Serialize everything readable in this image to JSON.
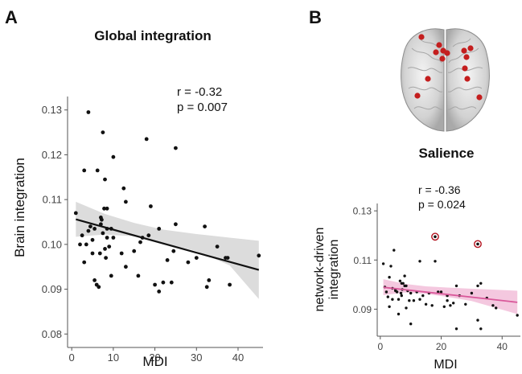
{
  "panels": {
    "a": {
      "letter": "A"
    },
    "b": {
      "letter": "B",
      "brain_title": "Salience"
    }
  },
  "colors": {
    "point": "#111111",
    "fit_a": "#111111",
    "band_a": "#d6d6d6",
    "fit_b": "#d9589a",
    "band_b": "#f3c2dc",
    "highlight": "#b3121e",
    "node": "#c41e1e",
    "axis": "#555555"
  },
  "chart_data": [
    {
      "type": "scatter",
      "title": "Global integration",
      "xlabel": "MDI",
      "ylabel": "Brain integration",
      "xlim": [
        -1,
        46
      ],
      "ylim": [
        0.077,
        0.133
      ],
      "xticks": [
        0,
        10,
        20,
        30,
        40
      ],
      "yticks": [
        0.08,
        0.09,
        0.1,
        0.11,
        0.12,
        0.13
      ],
      "ytick_labels": [
        "0.08",
        "0.09",
        "0.10",
        "0.11",
        "0.12",
        "0.13"
      ],
      "stats": {
        "r": "r  = -0.32",
        "p": "p = 0.007"
      },
      "fit": {
        "x": [
          1,
          45
        ],
        "y": [
          0.1056,
          0.0943
        ]
      },
      "ci_band": {
        "x": [
          1,
          8,
          15,
          22,
          30,
          38,
          45
        ],
        "upper": [
          0.1095,
          0.1068,
          0.1048,
          0.1033,
          0.1023,
          0.1015,
          0.1008
        ],
        "lower": [
          0.1017,
          0.1022,
          0.1018,
          0.1003,
          0.0985,
          0.0953,
          0.0878
        ]
      },
      "points": [
        [
          1,
          0.107
        ],
        [
          2,
          0.1
        ],
        [
          2.5,
          0.102
        ],
        [
          3,
          0.1165
        ],
        [
          3,
          0.096
        ],
        [
          3.5,
          0.1
        ],
        [
          4,
          0.1295
        ],
        [
          4,
          0.103
        ],
        [
          4.5,
          0.104
        ],
        [
          5,
          0.101
        ],
        [
          5,
          0.098
        ],
        [
          5.5,
          0.092
        ],
        [
          5.5,
          0.1035
        ],
        [
          6,
          0.091
        ],
        [
          6.2,
          0.1165
        ],
        [
          6.5,
          0.0905
        ],
        [
          6.8,
          0.098
        ],
        [
          7,
          0.1045
        ],
        [
          7,
          0.106
        ],
        [
          7.2,
          0.1055
        ],
        [
          7.5,
          0.1025
        ],
        [
          7.5,
          0.125
        ],
        [
          7.8,
          0.108
        ],
        [
          8,
          0.1145
        ],
        [
          8,
          0.099
        ],
        [
          8.2,
          0.097
        ],
        [
          8.5,
          0.108
        ],
        [
          8.5,
          0.1035
        ],
        [
          8.5,
          0.1015
        ],
        [
          9,
          0.0995
        ],
        [
          9.5,
          0.093
        ],
        [
          9.5,
          0.1035
        ],
        [
          10,
          0.1015
        ],
        [
          10,
          0.1195
        ],
        [
          12,
          0.098
        ],
        [
          12.5,
          0.1125
        ],
        [
          13,
          0.095
        ],
        [
          13,
          0.1095
        ],
        [
          15,
          0.0985
        ],
        [
          16,
          0.093
        ],
        [
          16.5,
          0.1005
        ],
        [
          17,
          0.1015
        ],
        [
          18,
          0.1235
        ],
        [
          18.5,
          0.102
        ],
        [
          19,
          0.1085
        ],
        [
          20,
          0.091
        ],
        [
          21,
          0.0895
        ],
        [
          21,
          0.1035
        ],
        [
          22,
          0.0915
        ],
        [
          23,
          0.0965
        ],
        [
          24,
          0.0915
        ],
        [
          24.5,
          0.0985
        ],
        [
          25,
          0.1215
        ],
        [
          25,
          0.1045
        ],
        [
          28,
          0.096
        ],
        [
          30,
          0.097
        ],
        [
          32,
          0.104
        ],
        [
          32.5,
          0.0905
        ],
        [
          33,
          0.092
        ],
        [
          35,
          0.0995
        ],
        [
          37,
          0.097
        ],
        [
          37.5,
          0.097
        ],
        [
          38,
          0.091
        ],
        [
          45,
          0.0975
        ]
      ]
    },
    {
      "type": "scatter",
      "title": "",
      "xlabel": "MDI",
      "ylabel": "network-driven integration",
      "ylabel_lines": [
        "network-driven",
        "integration"
      ],
      "xlim": [
        -1,
        46
      ],
      "ylim": [
        0.079,
        0.133
      ],
      "xticks": [
        0,
        20,
        40
      ],
      "yticks": [
        0.09,
        0.11,
        0.13
      ],
      "ytick_labels": [
        "0.09",
        "0.11",
        "0.13"
      ],
      "stats": {
        "r": "r  = -0.36",
        "p": "p = 0.024"
      },
      "fit": {
        "x": [
          1,
          45
        ],
        "y": [
          0.0989,
          0.0928
        ]
      },
      "ci_band": {
        "x": [
          1,
          8,
          15,
          22,
          30,
          38,
          45
        ],
        "upper": [
          0.1022,
          0.1003,
          0.0993,
          0.0988,
          0.0983,
          0.0979,
          0.0975
        ],
        "lower": [
          0.0957,
          0.0968,
          0.0962,
          0.095,
          0.0933,
          0.0905,
          0.088
        ]
      },
      "highlighted": [
        [
          18,
          0.1195
        ],
        [
          32,
          0.1165
        ]
      ],
      "points": [
        [
          1,
          0.1085
        ],
        [
          1.5,
          0.099
        ],
        [
          2,
          0.097
        ],
        [
          2.5,
          0.095
        ],
        [
          3,
          0.103
        ],
        [
          3,
          0.091
        ],
        [
          3.5,
          0.1075
        ],
        [
          4,
          0.094
        ],
        [
          4,
          0.0985
        ],
        [
          4.5,
          0.114
        ],
        [
          5,
          0.0975
        ],
        [
          5,
          0.098
        ],
        [
          5.5,
          0.097
        ],
        [
          6,
          0.088
        ],
        [
          6,
          0.094
        ],
        [
          6.5,
          0.1015
        ],
        [
          6.8,
          0.0965
        ],
        [
          7,
          0.1005
        ],
        [
          7,
          0.0955
        ],
        [
          7.2,
          0.098
        ],
        [
          7.5,
          0.1005
        ],
        [
          8,
          0.1035
        ],
        [
          8,
          0.0995
        ],
        [
          8.5,
          0.0905
        ],
        [
          8.5,
          0.0995
        ],
        [
          9,
          0.0975
        ],
        [
          9.5,
          0.0935
        ],
        [
          10,
          0.0965
        ],
        [
          10,
          0.084
        ],
        [
          11,
          0.0935
        ],
        [
          12,
          0.097
        ],
        [
          13,
          0.094
        ],
        [
          13,
          0.1095
        ],
        [
          14,
          0.0955
        ],
        [
          15,
          0.092
        ],
        [
          16,
          0.0965
        ],
        [
          17,
          0.0915
        ],
        [
          18,
          0.1095
        ],
        [
          19,
          0.097
        ],
        [
          20,
          0.097
        ],
        [
          21,
          0.091
        ],
        [
          22,
          0.0935
        ],
        [
          22,
          0.0955
        ],
        [
          23,
          0.0915
        ],
        [
          24,
          0.0925
        ],
        [
          25,
          0.0995
        ],
        [
          25,
          0.082
        ],
        [
          26,
          0.0955
        ],
        [
          28,
          0.092
        ],
        [
          30,
          0.0965
        ],
        [
          32,
          0.0995
        ],
        [
          32,
          0.0855
        ],
        [
          33,
          0.082
        ],
        [
          33,
          0.1005
        ],
        [
          35,
          0.0945
        ],
        [
          37,
          0.0915
        ],
        [
          38,
          0.0905
        ],
        [
          45,
          0.0875
        ]
      ]
    }
  ]
}
